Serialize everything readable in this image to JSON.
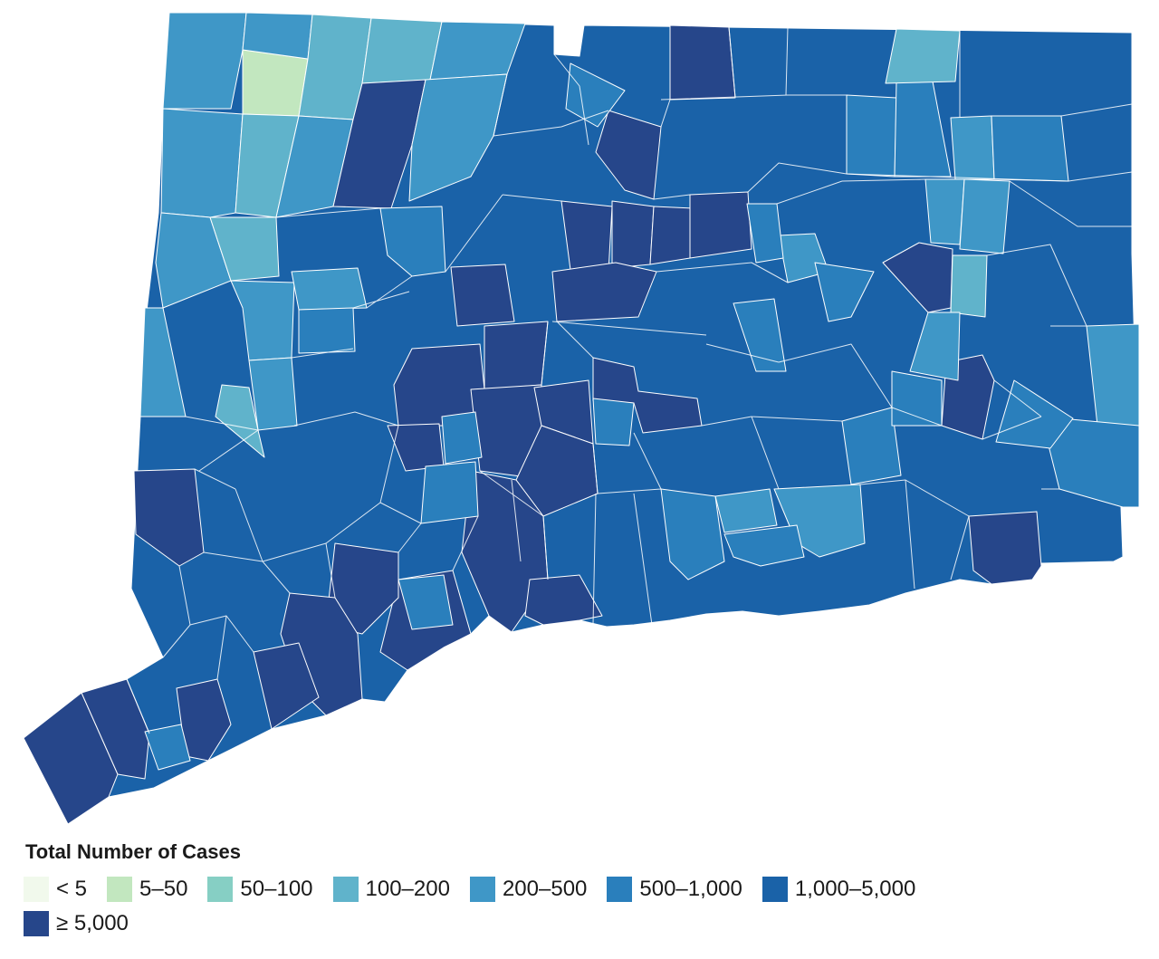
{
  "legend": {
    "title": "Total Number of Cases",
    "items": [
      {
        "label": "< 5",
        "color": "#f1f9ec"
      },
      {
        "label": "5–50",
        "color": "#c2e7bf"
      },
      {
        "label": "50–100",
        "color": "#86cfc4"
      },
      {
        "label": "100–200",
        "color": "#60b3cb"
      },
      {
        "label": "200–500",
        "color": "#3f97c7"
      },
      {
        "label": "500–1,000",
        "color": "#2a7fbc"
      },
      {
        "label": "1,000–5,000",
        "color": "#1a62a8"
      },
      {
        "label": "≥ 5,000",
        "color": "#26468a"
      }
    ]
  }
}
